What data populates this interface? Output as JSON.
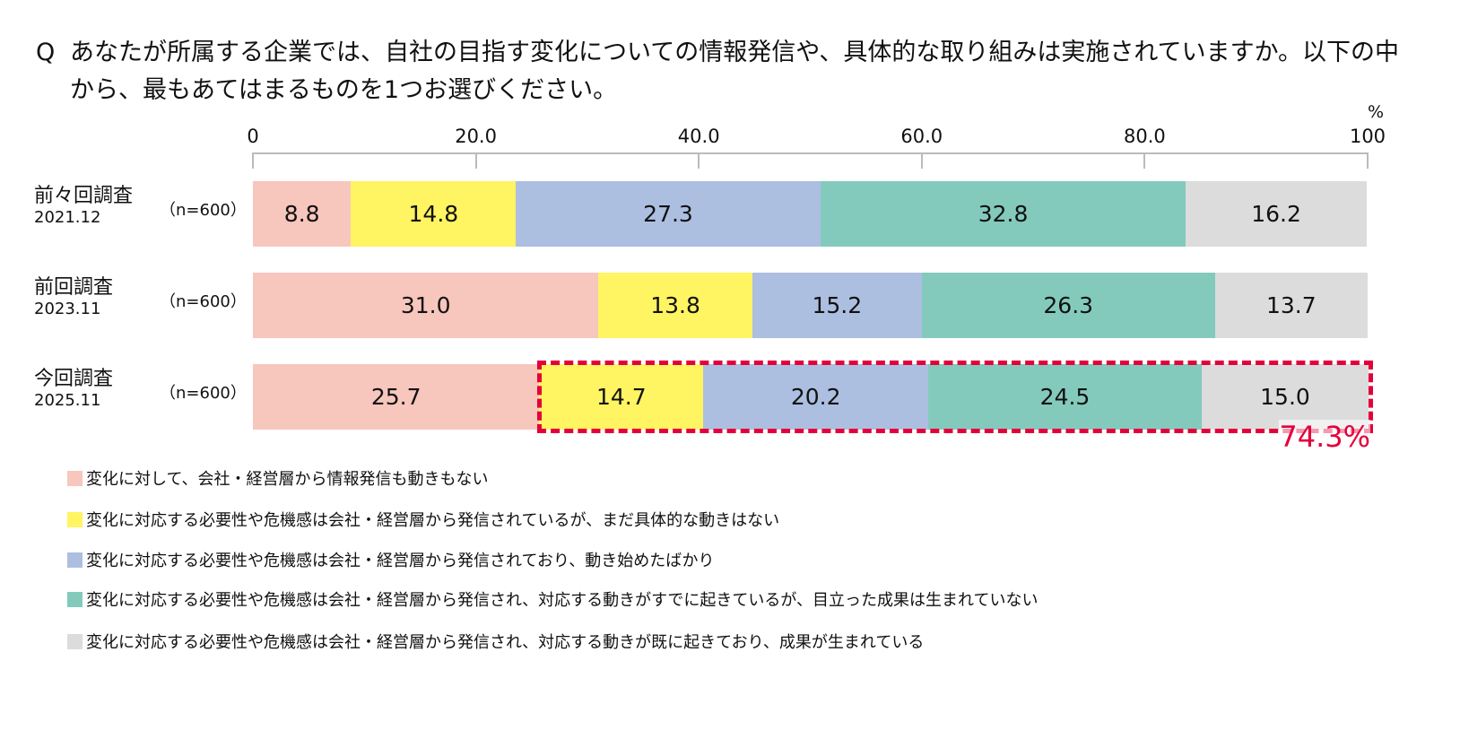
{
  "question": {
    "mark": "Q",
    "text": "あなたが所属する企業では、自社の目指す変化についての情報発信や、具体的な取り組みは実施されていますか。以下の中から、最もあてはまるものを1つお選びください。"
  },
  "chart_data": {
    "type": "bar",
    "orientation": "horizontal-stacked",
    "xlim": [
      0,
      100
    ],
    "unit": "%",
    "ticks": [
      "0",
      "20.0",
      "40.0",
      "60.0",
      "80.0",
      "100"
    ],
    "categories": [
      {
        "label": "前々回調査",
        "date": "2021.12",
        "n": "（n=600）"
      },
      {
        "label": "前回調査",
        "date": "2023.11",
        "n": "（n=600）"
      },
      {
        "label": "今回調査",
        "date": "2025.11",
        "n": "（n=600）"
      }
    ],
    "series": [
      {
        "name": "変化に対して、会社・経営層から情報発信も動きもない",
        "color": "#f7c6bd",
        "values": [
          8.8,
          31.0,
          25.7
        ]
      },
      {
        "name": "変化に対応する必要性や危機感は会社・経営層から発信されているが、まだ具体的な動きはない",
        "color": "#fff462",
        "values": [
          14.8,
          13.8,
          14.7
        ]
      },
      {
        "name": "変化に対応する必要性や危機感は会社・経営層から発信されており、動き始めたばかり",
        "color": "#adbfe0",
        "values": [
          27.3,
          15.2,
          20.2
        ]
      },
      {
        "name": "変化に対応する必要性や危機感は会社・経営層から発信され、対応する動きがすでに起きているが、目立った成果は生まれていない",
        "color": "#83cabd",
        "values": [
          32.8,
          26.3,
          24.5
        ]
      },
      {
        "name": "変化に対応する必要性や危機感は会社・経営層から発信され、対応する動きが既に起きており、成果が生まれている",
        "color": "#dcdcdc",
        "values": [
          16.2,
          13.7,
          15.0
        ]
      }
    ],
    "annotation": {
      "text": "74.3%",
      "row": 2,
      "from_series": 1,
      "to_series": 4,
      "color": "#e4003a"
    }
  }
}
